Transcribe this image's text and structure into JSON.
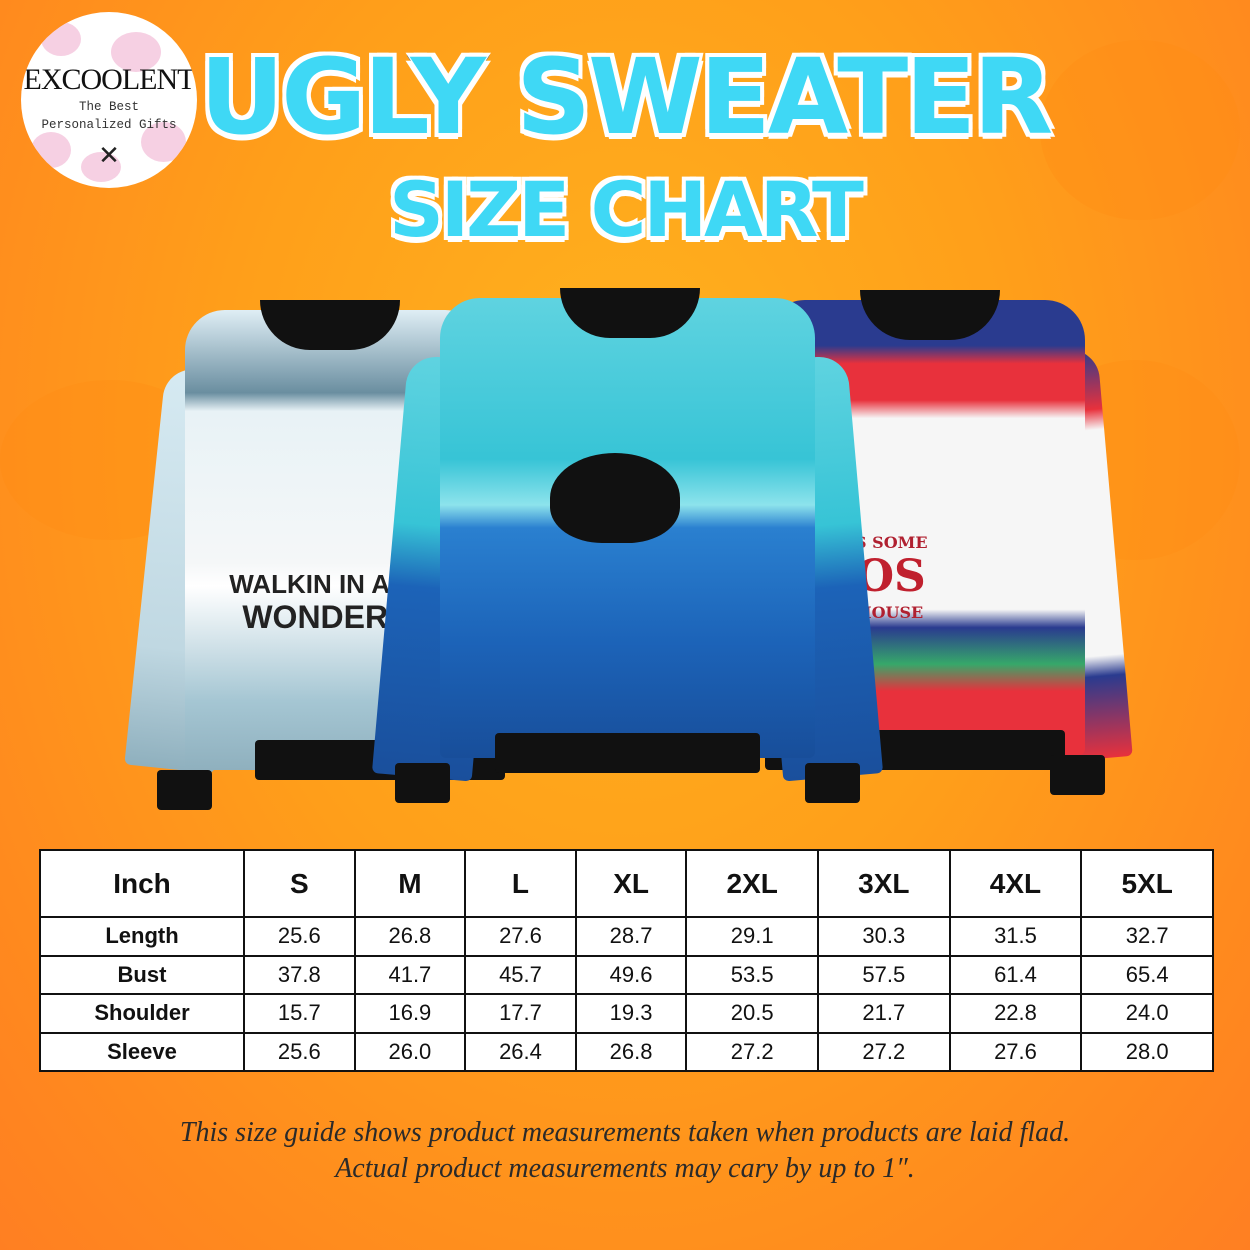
{
  "brand": {
    "name": "EXCOOLENT",
    "tagline_1": "The Best",
    "tagline_2": "Personalized Gifts",
    "icon": "crossed-arrows-icon"
  },
  "title": {
    "line1": "UGLY SWEATER",
    "line2": "SIZE CHART"
  },
  "sweaters": [
    {
      "text_1": "WALKIN IN A W",
      "text_2": "WONDERL",
      "colors": [
        "#d6eaf2",
        "#6a8ea0"
      ]
    },
    {
      "colors": [
        "#37c4d6",
        "#1c63b8"
      ]
    },
    {
      "text_1": "ERE'S SOME",
      "text_2": "HOS",
      "text_3": "HIS HOUSE",
      "colors": [
        "#f6f6f6",
        "#e8313c",
        "#2a3b8f"
      ]
    }
  ],
  "size_table": {
    "unit": "Inch",
    "sizes": [
      "S",
      "M",
      "L",
      "XL",
      "2XL",
      "3XL",
      "4XL",
      "5XL"
    ],
    "rows": [
      {
        "label": "Length",
        "values": [
          "25.6",
          "26.8",
          "27.6",
          "28.7",
          "29.1",
          "30.3",
          "31.5",
          "32.7"
        ]
      },
      {
        "label": "Bust",
        "values": [
          "37.8",
          "41.7",
          "45.7",
          "49.6",
          "53.5",
          "57.5",
          "61.4",
          "65.4"
        ]
      },
      {
        "label": "Shoulder",
        "values": [
          "15.7",
          "16.9",
          "17.7",
          "19.3",
          "20.5",
          "21.7",
          "22.8",
          "24.0"
        ]
      },
      {
        "label": "Sleeve",
        "values": [
          "25.6",
          "26.0",
          "26.4",
          "26.8",
          "27.2",
          "27.2",
          "27.6",
          "28.0"
        ]
      }
    ]
  },
  "note": {
    "line1": "This size guide shows product measurements taken when products are laid flad.",
    "line2": "Actual product measurements may cary by up to 1″."
  }
}
